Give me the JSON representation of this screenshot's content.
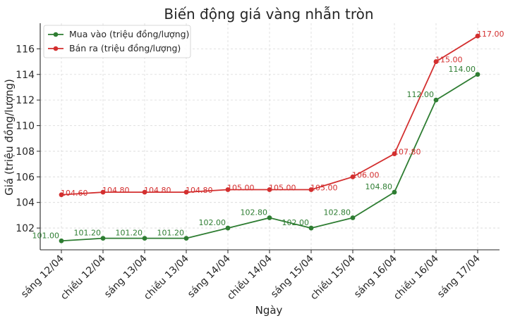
{
  "chart_data": {
    "type": "line",
    "title": "Biến động giá vàng nhẫn tròn",
    "xlabel": "Ngày",
    "ylabel": "Giá (triệu đồng/lượng)",
    "categories": [
      "sáng 12/04",
      "chiều 12/04",
      "sáng 13/04",
      "chiều 13/04",
      "sáng 14/04",
      "chiều 14/04",
      "sáng 15/04",
      "chiều 15/04",
      "sáng 16/04",
      "chiều 16/04",
      "sáng 17/04"
    ],
    "ylim": [
      100.3,
      118.0
    ],
    "yticks": [
      102,
      104,
      106,
      108,
      110,
      112,
      114,
      116
    ],
    "grid": true,
    "legend_position": "top-left",
    "series": [
      {
        "name": "Mua vào (triệu đồng/lượng)",
        "color": "#2e7d32",
        "values": [
          101.0,
          101.2,
          101.2,
          101.2,
          102.0,
          102.8,
          102.0,
          102.8,
          104.8,
          112.0,
          114.0
        ],
        "labels": [
          "101.00",
          "101.20",
          "101.20",
          "101.20",
          "102.00",
          "102.80",
          "102.00",
          "102.80",
          "104.80",
          "112.00",
          "114.00"
        ]
      },
      {
        "name": "Bán ra (triệu đồng/lượng)",
        "color": "#d32f2f",
        "values": [
          104.6,
          104.8,
          104.8,
          104.8,
          105.0,
          105.0,
          105.0,
          106.0,
          107.8,
          115.0,
          117.0
        ],
        "labels": [
          "104.60",
          "104.80",
          "104.80",
          "104.80",
          "105.00",
          "105.00",
          "105.00",
          "106.00",
          "107.80",
          "115.00",
          "117.00"
        ]
      }
    ]
  }
}
